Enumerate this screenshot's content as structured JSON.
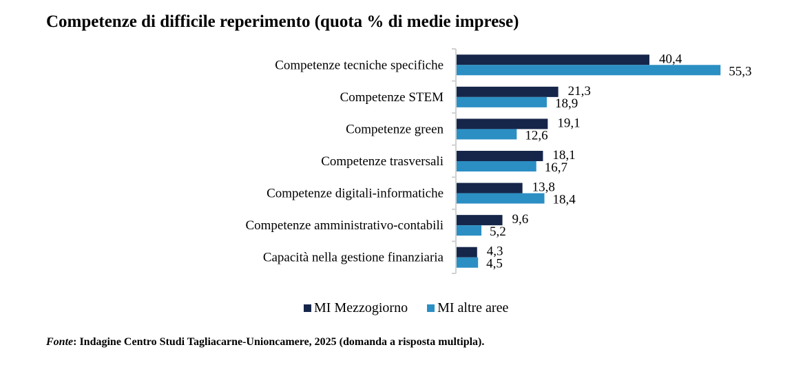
{
  "colors": {
    "series1": "#16264a",
    "series2": "#2b8fc4",
    "axis": "#d0d0d0"
  },
  "source": {
    "prefix": "Fonte",
    "text": ": Indagine Centro Studi Tagliacarne-Unioncamere, 2025 (domanda a risposta multipla)."
  },
  "chart_data": {
    "type": "bar",
    "orientation": "horizontal",
    "title": "Competenze di difficile reperimento (quota % di medie imprese)",
    "xlabel": "",
    "ylabel": "",
    "xlim": [
      0,
      55.3
    ],
    "grid": false,
    "legend_position": "bottom",
    "categories": [
      "Competenze tecniche specifiche",
      "Competenze STEM",
      "Competenze green",
      "Competenze trasversali",
      "Competenze digitali-informatiche",
      "Competenze amministrativo-contabili",
      "Capacità nella gestione finanziaria"
    ],
    "series": [
      {
        "name": "MI Mezzogiorno",
        "values": [
          40.4,
          21.3,
          19.1,
          18.1,
          13.8,
          9.6,
          4.3
        ],
        "labels": [
          "40,4",
          "21,3",
          "19,1",
          "18,1",
          "13,8",
          "9,6",
          "4,3"
        ]
      },
      {
        "name": "MI altre aree",
        "values": [
          55.3,
          18.9,
          12.6,
          16.7,
          18.4,
          5.2,
          4.5
        ],
        "labels": [
          "55,3",
          "18,9",
          "12,6",
          "16,7",
          "18,4",
          "5,2",
          "4,5"
        ]
      }
    ]
  }
}
